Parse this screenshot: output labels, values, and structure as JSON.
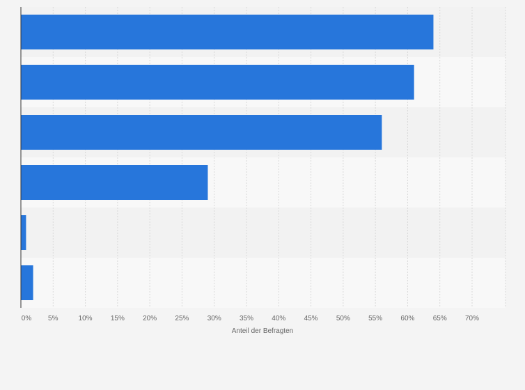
{
  "chart_data": {
    "type": "bar",
    "orientation": "horizontal",
    "categories": [
      "",
      "",
      "",
      "",
      "",
      ""
    ],
    "values": [
      64,
      61,
      56,
      29,
      0.8,
      1.9
    ],
    "xlabel": "Anteil der Befragten",
    "ylabel": "",
    "xlim": [
      0,
      75
    ],
    "x_ticks": [
      0,
      5,
      10,
      15,
      20,
      25,
      30,
      35,
      40,
      45,
      50,
      55,
      60,
      65,
      70
    ],
    "x_tick_labels": [
      "0%",
      "5%",
      "10%",
      "15%",
      "20%",
      "25%",
      "30%",
      "35%",
      "40%",
      "45%",
      "50%",
      "55%",
      "60%",
      "65%",
      "70%"
    ],
    "grid": true,
    "legend": "none",
    "colors": {
      "bar": "#2776db",
      "band_dark": "#f2f2f2",
      "band_light": "#f8f8f8",
      "grid": "#d9d9d9",
      "axis": "#333333",
      "text": "#666666"
    }
  }
}
